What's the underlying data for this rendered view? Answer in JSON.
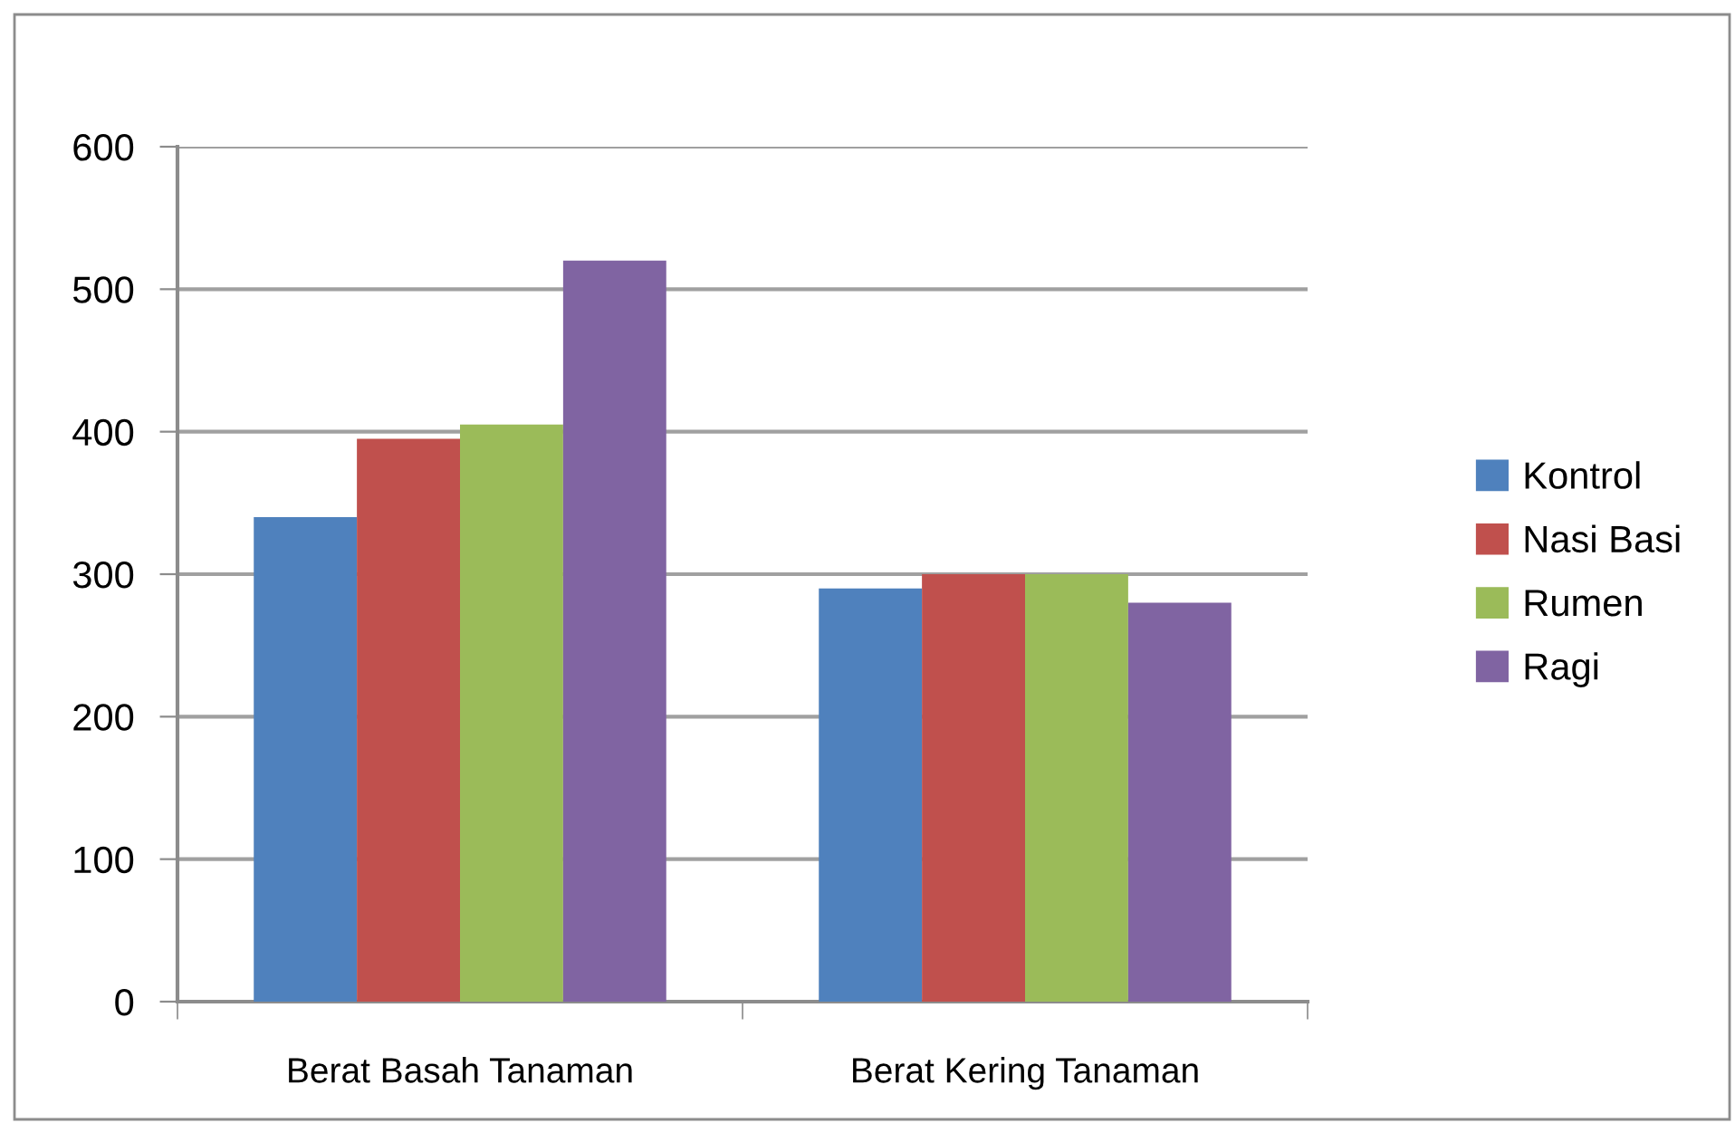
{
  "chart_data": {
    "type": "bar",
    "categories": [
      "Berat Basah Tanaman",
      "Berat Kering Tanaman"
    ],
    "series": [
      {
        "name": "Kontrol",
        "color": "#4f81bd",
        "values": [
          340,
          290
        ]
      },
      {
        "name": "Nasi Basi",
        "color": "#c0504d",
        "values": [
          395,
          300
        ]
      },
      {
        "name": "Rumen",
        "color": "#9bbb59",
        "values": [
          405,
          300
        ]
      },
      {
        "name": "Ragi",
        "color": "#8064a2",
        "values": [
          520,
          280
        ]
      }
    ],
    "ylim": [
      0,
      600
    ],
    "yticks": [
      0,
      100,
      200,
      300,
      400,
      500,
      600
    ],
    "grid": "y",
    "legend": "right"
  }
}
